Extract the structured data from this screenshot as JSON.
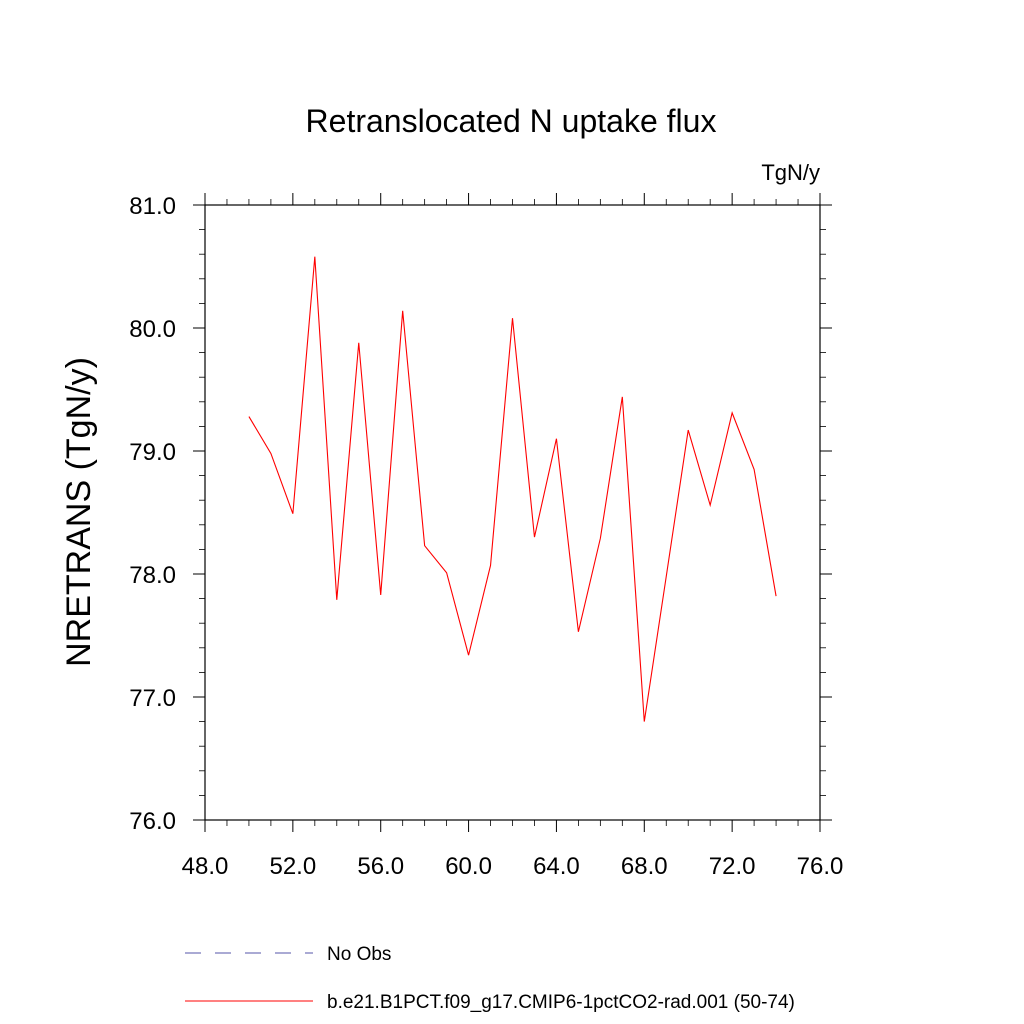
{
  "chart_data": {
    "type": "line",
    "title": "Retranslocated N uptake flux",
    "units": "TgN/y",
    "xlabel": "",
    "ylabel": "NRETRANS  (TgN/y)",
    "xlim": [
      48.0,
      76.0
    ],
    "ylim": [
      76.0,
      81.0
    ],
    "xticks": [
      "48.0",
      "52.0",
      "56.0",
      "60.0",
      "64.0",
      "68.0",
      "72.0",
      "76.0"
    ],
    "yticks": [
      "76.0",
      "77.0",
      "78.0",
      "79.0",
      "80.0",
      "81.0"
    ],
    "grid": false,
    "series": [
      {
        "name": "b.e21.B1PCT.f09_g17.CMIP6-1pctCO2-rad.001 (50-74)",
        "color": "#ff0000",
        "x": [
          50,
          51,
          52,
          53,
          54,
          55,
          56,
          57,
          58,
          59,
          60,
          61,
          62,
          63,
          64,
          65,
          66,
          67,
          68,
          69,
          70,
          71,
          72,
          73,
          74
        ],
        "y": [
          79.28,
          78.98,
          78.49,
          80.58,
          77.79,
          79.88,
          77.83,
          80.14,
          78.23,
          78.01,
          77.34,
          78.07,
          80.08,
          78.3,
          79.1,
          77.53,
          78.29,
          79.44,
          76.8,
          77.98,
          79.17,
          78.56,
          79.31,
          78.85,
          77.82
        ]
      }
    ],
    "legend": {
      "position": "bottom",
      "entries": [
        {
          "label": "No Obs",
          "color": "#5555aa",
          "style": "dashed"
        },
        {
          "label": "b.e21.B1PCT.f09_g17.CMIP6-1pctCO2-rad.001 (50-74)",
          "color": "#ff0000",
          "style": "solid"
        }
      ]
    }
  }
}
